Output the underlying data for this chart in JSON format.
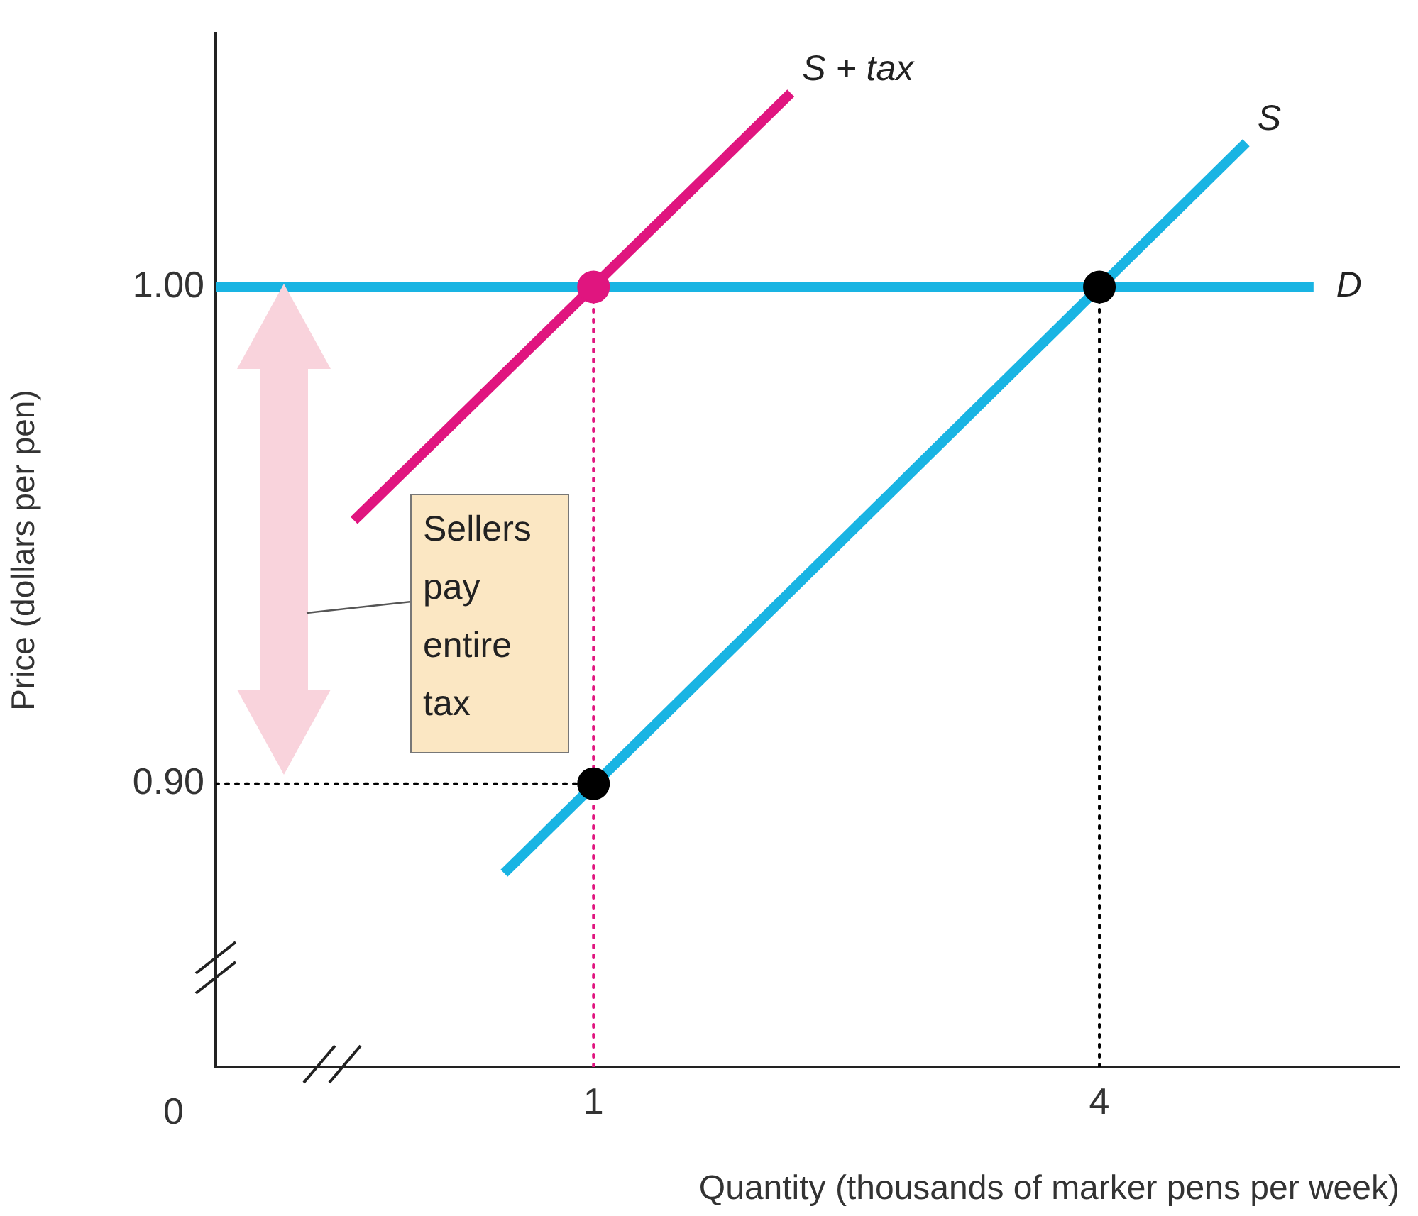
{
  "chart_data": {
    "type": "line",
    "xlabel": "Quantity (thousands of marker pens per week)",
    "ylabel": "Price (dollars per pen)",
    "xlim": [
      -1.24,
      5.78
    ],
    "ylim": [
      0.843,
      1.051
    ],
    "xticks": [
      1,
      4
    ],
    "yticks": [
      {
        "value": 0.9,
        "label": "0.90"
      },
      {
        "value": 1.0,
        "label": "1.00"
      }
    ],
    "grid": false,
    "legend": false,
    "annotations": [
      "Sellers pay entire tax",
      "0"
    ],
    "series": [
      {
        "name": "S + tax",
        "color": "#e0157f",
        "x": [
          -0.42,
          2.17
        ],
        "values": [
          0.953,
          1.039
        ]
      },
      {
        "name": "S",
        "color": "#19b4e3",
        "x": [
          0.47,
          4.87
        ],
        "values": [
          0.882,
          1.029
        ]
      },
      {
        "name": "D",
        "color": "#19b4e3",
        "x": [
          -1.24,
          5.27
        ],
        "values": [
          1.0,
          1.0
        ]
      },
      {
        "line_style": "dotted",
        "color": "#e0157f",
        "x": [
          1,
          1
        ],
        "values": [
          0.843,
          1.0
        ]
      },
      {
        "line_style": "dotted",
        "color": "#000000",
        "x": [
          4,
          4
        ],
        "values": [
          0.843,
          1.0
        ]
      },
      {
        "line_style": "dotted",
        "color": "#000000",
        "x": [
          -1.24,
          1
        ],
        "values": [
          0.9,
          0.9
        ]
      },
      {
        "type": "scatter",
        "marker": "circle",
        "colors": [
          "#e0157f",
          "#000000",
          "#000000"
        ],
        "x": [
          1,
          4,
          1
        ],
        "values": [
          1.0,
          1.0,
          0.9
        ]
      }
    ]
  }
}
